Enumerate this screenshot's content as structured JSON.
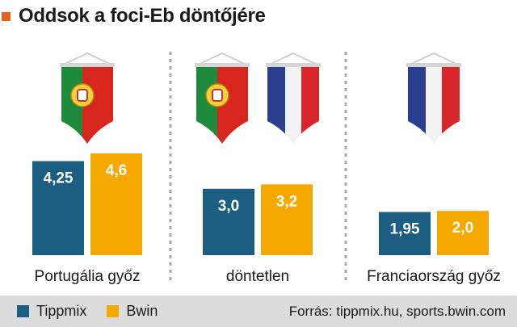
{
  "title": "Oddsok a foci-Eb döntőjére",
  "chart_data": {
    "type": "bar",
    "categories": [
      "Portugália győz",
      "döntetlen",
      "Franciaország győz"
    ],
    "series": [
      {
        "name": "Tippmix",
        "values": [
          4.25,
          3.0,
          1.95
        ],
        "labels": [
          "4,25",
          "3,0",
          "1,95"
        ],
        "color": "#1b5e82"
      },
      {
        "name": "Bwin",
        "values": [
          4.6,
          3.2,
          2.0
        ],
        "labels": [
          "4,6",
          "3,2",
          "2,0"
        ],
        "color": "#f5a800"
      }
    ],
    "ylim": [
      0,
      4.6
    ],
    "grid": false,
    "legend": "bottom-left",
    "flags": [
      [
        "portugal"
      ],
      [
        "portugal",
        "france"
      ],
      [
        "france"
      ]
    ]
  },
  "footer": {
    "legend": [
      {
        "label": "Tippmix",
        "color": "#1b5e82"
      },
      {
        "label": "Bwin",
        "color": "#f5a800"
      }
    ],
    "source": "Forrás: tippmix.hu, sports.bwin.com"
  }
}
